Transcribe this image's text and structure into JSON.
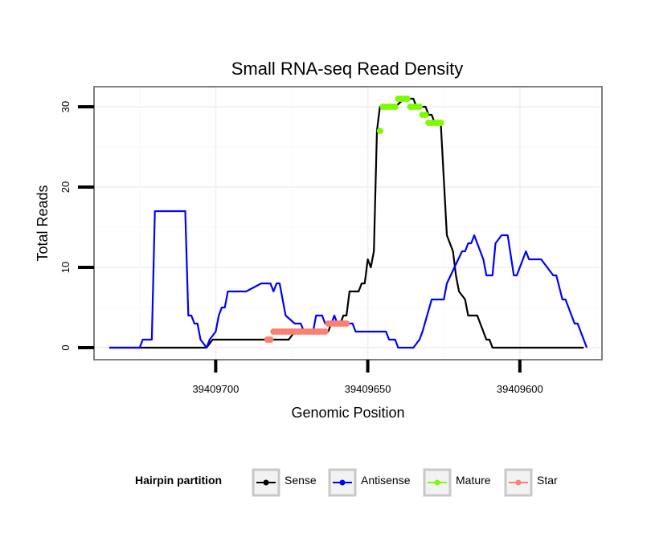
{
  "chart_data": {
    "type": "line",
    "title": "Small RNA-seq Read Density",
    "xlabel": "Genomic Position",
    "ylabel": "Total Reads",
    "x_reversed": true,
    "xlim": [
      39409740,
      39409573
    ],
    "ylim": [
      -1.5,
      32.5
    ],
    "x_ticks": [
      39409700,
      39409650,
      39409600
    ],
    "y_ticks": [
      0,
      10,
      20,
      30
    ],
    "legend": {
      "title": "Hairpin partition",
      "position": "bottom",
      "entries": [
        {
          "label": "Sense",
          "color": "#000000"
        },
        {
          "label": "Antisense",
          "color": "#0000ff"
        },
        {
          "label": "Mature",
          "color": "#7cfc00"
        },
        {
          "label": "Star",
          "color": "#fa8072"
        }
      ]
    },
    "series": [
      {
        "name": "Sense",
        "color": "#000000",
        "style": "line",
        "x": [
          39409735,
          39409705,
          39409704,
          39409703,
          39409701,
          39409677,
          39409676,
          39409674,
          39409664,
          39409663,
          39409662,
          39409661,
          39409659,
          39409658,
          39409657,
          39409656,
          39409655,
          39409654,
          39409653,
          39409652,
          39409651,
          39409650,
          39409649,
          39409648,
          39409647,
          39409646,
          39409645,
          39409641,
          39409638,
          39409637,
          39409635,
          39409634,
          39409632,
          39409631,
          39409630,
          39409629,
          39409628,
          39409627,
          39409626,
          39409624,
          39409623,
          39409622,
          39409621,
          39409620,
          39409618,
          39409617,
          39409616,
          39409614,
          39409613,
          39409611,
          39409610,
          39409609,
          39409608,
          39409607,
          39409606,
          39409579
        ],
        "y": [
          0,
          0,
          0,
          0,
          1,
          1,
          1,
          2,
          2,
          2,
          3,
          3,
          3,
          4,
          4,
          7,
          7,
          7,
          7,
          8,
          8,
          11,
          10,
          12,
          27,
          30,
          30,
          30,
          31,
          31,
          31,
          30,
          30,
          30,
          29,
          29,
          28,
          28,
          28,
          14,
          13,
          12,
          9,
          7,
          6,
          4,
          4,
          4,
          3,
          1,
          1,
          0,
          0,
          0,
          0,
          0
        ]
      },
      {
        "name": "Antisense",
        "color": "#0000ff",
        "style": "line",
        "x": [
          39409735,
          39409725,
          39409724,
          39409721,
          39409720,
          39409710,
          39409709,
          39409708,
          39409707,
          39409706,
          39409705,
          39409703,
          39409702,
          39409700,
          39409699,
          39409698,
          39409697,
          39409696,
          39409691,
          39409690,
          39409685,
          39409684,
          39409683,
          39409682,
          39409681,
          39409680,
          39409679,
          39409677,
          39409674,
          39409672,
          39409671,
          39409669,
          39409668,
          39409667,
          39409666,
          39409665,
          39409664,
          39409663,
          39409662,
          39409661,
          39409660,
          39409655,
          39409654,
          39409644,
          39409643,
          39409641,
          39409640,
          39409636,
          39409635,
          39409633,
          39409632,
          39409629,
          39409628,
          39409627,
          39409626,
          39409625,
          39409624,
          39409619,
          39409618,
          39409617,
          39409616,
          39409615,
          39409614,
          39409613,
          39409612,
          39409611,
          39409610,
          39409609,
          39409608,
          39409606,
          39409604,
          39409602,
          39409601,
          39409600,
          39409599,
          39409598,
          39409597,
          39409596,
          39409595,
          39409594,
          39409593,
          39409589,
          39409588,
          39409586,
          39409585,
          39409584,
          39409583,
          39409582,
          39409581,
          39409580,
          39409578
        ],
        "y": [
          0,
          0,
          1,
          1,
          17,
          17,
          4,
          4,
          3,
          3,
          1,
          0,
          1,
          2,
          4,
          5,
          5,
          7,
          7,
          7,
          8,
          8,
          8,
          8,
          7,
          8,
          8,
          4,
          3,
          3,
          2,
          2,
          2,
          4,
          4,
          4,
          3,
          3,
          3,
          4,
          3,
          3,
          2,
          2,
          1,
          1,
          0,
          0,
          0,
          1,
          2,
          6,
          6,
          6,
          6,
          6,
          8,
          12,
          12,
          13,
          13,
          14,
          13,
          12,
          11,
          9,
          9,
          9,
          13,
          14,
          14,
          9,
          9,
          10,
          11,
          12,
          11,
          11,
          11,
          11,
          11,
          9,
          9,
          6,
          6,
          5,
          4,
          3,
          3,
          2,
          0
        ]
      },
      {
        "name": "Mature",
        "color": "#7cfc00",
        "style": "points",
        "x": [
          39409646,
          39409645,
          39409644,
          39409643,
          39409642,
          39409641,
          39409640,
          39409639,
          39409638,
          39409637,
          39409636,
          39409635,
          39409634,
          39409633,
          39409632,
          39409631,
          39409630,
          39409629,
          39409628,
          39409627,
          39409626
        ],
        "y": [
          27,
          30,
          30,
          30,
          30,
          30,
          31,
          31,
          31,
          31,
          30,
          30,
          30,
          30,
          29,
          29,
          28,
          28,
          28,
          28,
          28
        ]
      },
      {
        "name": "Star",
        "color": "#fa8072",
        "style": "points",
        "x": [
          39409683,
          39409682,
          39409681,
          39409680,
          39409679,
          39409678,
          39409677,
          39409676,
          39409675,
          39409674,
          39409673,
          39409672,
          39409671,
          39409670,
          39409669,
          39409668,
          39409667,
          39409666,
          39409665,
          39409664,
          39409663,
          39409662,
          39409661,
          39409660,
          39409659,
          39409658,
          39409657
        ],
        "y": [
          1,
          1,
          2,
          2,
          2,
          2,
          2,
          2,
          2,
          2,
          2,
          2,
          2,
          2,
          2,
          2,
          2,
          2,
          2,
          2,
          3,
          3,
          3,
          3,
          3,
          3,
          3
        ]
      }
    ]
  }
}
